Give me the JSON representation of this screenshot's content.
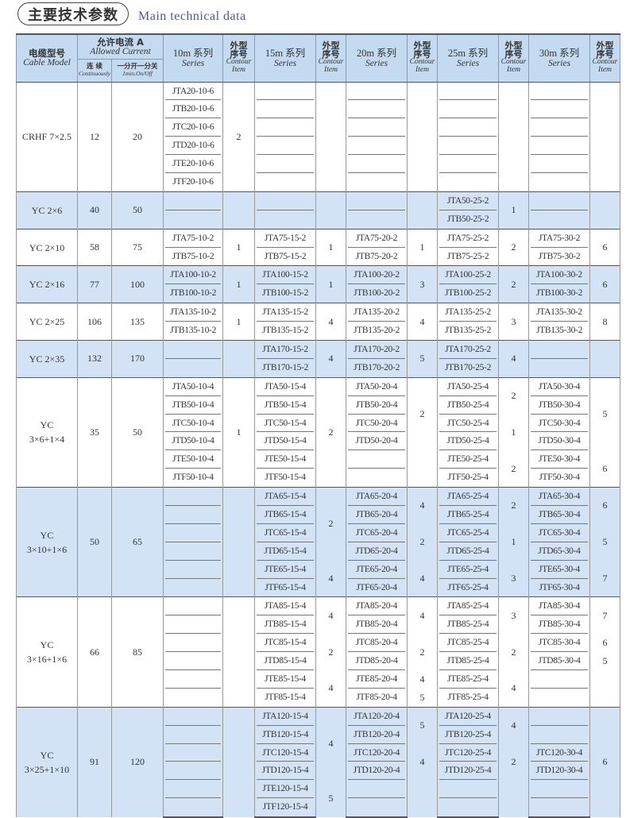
{
  "title": {
    "cn": "主要技术参数",
    "en": "Main technical data"
  },
  "header": {
    "cable_model_cn": "电缆型号",
    "cable_model_en": "Cable Model",
    "allowed_current_cn": "允许电流 A",
    "allowed_current_en": "Allowed Current",
    "continuous_cn": "连 续",
    "continuous_en": "Continuously",
    "onoff_cn": "一分开一分关",
    "onoff_en": "1min.On/Off",
    "series_en": "Series",
    "contour_cn_1": "外型",
    "contour_cn_2": "序号",
    "contour_en_1": "Contour",
    "contour_en_2": "Item",
    "series": [
      "10m 系列",
      "15m 系列",
      "20m 系列",
      "25m 系列",
      "30m 系列"
    ]
  },
  "colors": {
    "header_bg": "#c3daf0",
    "stripe_bg": "#d3e3f5"
  },
  "groups": [
    {
      "model": [
        "CRHF 7×2.5"
      ],
      "continuous": "12",
      "onoff": "20",
      "rows": 6,
      "blue": false,
      "series": [
        {
          "items": [
            "JTA20-10-6",
            "JTB20-10-6",
            "JTC20-10-6",
            "JTD20-10-6",
            "JTE20-10-6",
            "JTF20-10-6"
          ],
          "contour": [
            [
              6,
              "2"
            ]
          ]
        },
        {
          "items": [
            "",
            "",
            "",
            "",
            "",
            ""
          ],
          "contour": [
            [
              6,
              ""
            ]
          ]
        },
        {
          "items": [
            "",
            "",
            "",
            "",
            "",
            ""
          ],
          "contour": [
            [
              6,
              ""
            ]
          ]
        },
        {
          "items": [
            "",
            "",
            "",
            "",
            "",
            ""
          ],
          "contour": [
            [
              6,
              ""
            ]
          ]
        },
        {
          "items": [
            "",
            "",
            "",
            "",
            "",
            ""
          ],
          "contour": [
            [
              6,
              ""
            ]
          ]
        }
      ]
    },
    {
      "model": [
        "YC 2×6"
      ],
      "continuous": "40",
      "onoff": "50",
      "rows": 2,
      "blue": true,
      "series": [
        {
          "items": [
            "",
            ""
          ],
          "contour": [
            [
              2,
              ""
            ]
          ]
        },
        {
          "items": [
            "",
            ""
          ],
          "contour": [
            [
              2,
              ""
            ]
          ]
        },
        {
          "items": [
            "",
            ""
          ],
          "contour": [
            [
              2,
              ""
            ]
          ]
        },
        {
          "items": [
            "JTA50-25-2",
            "JTB50-25-2"
          ],
          "contour": [
            [
              2,
              "1"
            ]
          ]
        },
        {
          "items": [
            "",
            ""
          ],
          "contour": [
            [
              2,
              ""
            ]
          ]
        }
      ]
    },
    {
      "model": [
        "YC 2×10"
      ],
      "continuous": "58",
      "onoff": "75",
      "rows": 2,
      "blue": false,
      "series": [
        {
          "items": [
            "JTA75-10-2",
            "JTB75-10-2"
          ],
          "contour": [
            [
              2,
              "1"
            ]
          ]
        },
        {
          "items": [
            "JTA75-15-2",
            "JTB75-15-2"
          ],
          "contour": [
            [
              2,
              "1"
            ]
          ]
        },
        {
          "items": [
            "JTA75-20-2",
            "JTB75-20-2"
          ],
          "contour": [
            [
              2,
              "1"
            ]
          ]
        },
        {
          "items": [
            "JTA75-25-2",
            "JTB75-25-2"
          ],
          "contour": [
            [
              2,
              "2"
            ]
          ]
        },
        {
          "items": [
            "JTA75-30-2",
            "JTB75-30-2"
          ],
          "contour": [
            [
              2,
              "6"
            ]
          ]
        }
      ]
    },
    {
      "model": [
        "YC 2×16"
      ],
      "continuous": "77",
      "onoff": "100",
      "rows": 2,
      "blue": true,
      "series": [
        {
          "items": [
            "JTA100-10-2",
            "JTB100-10-2"
          ],
          "contour": [
            [
              2,
              "1"
            ]
          ]
        },
        {
          "items": [
            "JTA100-15-2",
            "JTB100-15-2"
          ],
          "contour": [
            [
              2,
              "1"
            ]
          ]
        },
        {
          "items": [
            "JTA100-20-2",
            "JTB100-20-2"
          ],
          "contour": [
            [
              2,
              "3"
            ]
          ]
        },
        {
          "items": [
            "JTA100-25-2",
            "JTB100-25-2"
          ],
          "contour": [
            [
              2,
              "2"
            ]
          ]
        },
        {
          "items": [
            "JTA100-30-2",
            "JTB100-30-2"
          ],
          "contour": [
            [
              2,
              "6"
            ]
          ]
        }
      ]
    },
    {
      "model": [
        "YC 2×25"
      ],
      "continuous": "106",
      "onoff": "135",
      "rows": 2,
      "blue": false,
      "series": [
        {
          "items": [
            "JTA135-10-2",
            "JTB135-10-2"
          ],
          "contour": [
            [
              2,
              "1"
            ]
          ]
        },
        {
          "items": [
            "JTA135-15-2",
            "JTB135-15-2"
          ],
          "contour": [
            [
              2,
              "4"
            ]
          ]
        },
        {
          "items": [
            "JTA135-20-2",
            "JTB135-20-2"
          ],
          "contour": [
            [
              2,
              "4"
            ]
          ]
        },
        {
          "items": [
            "JTA135-25-2",
            "JTB135-25-2"
          ],
          "contour": [
            [
              2,
              "3"
            ]
          ]
        },
        {
          "items": [
            "JTA135-30-2",
            "JTB135-30-2"
          ],
          "contour": [
            [
              2,
              "8"
            ]
          ]
        }
      ]
    },
    {
      "model": [
        "YC 2×35"
      ],
      "continuous": "132",
      "onoff": "170",
      "rows": 2,
      "blue": true,
      "series": [
        {
          "items": [
            "",
            ""
          ],
          "contour": [
            [
              2,
              ""
            ]
          ]
        },
        {
          "items": [
            "JTA170-15-2",
            "JTB170-15-2"
          ],
          "contour": [
            [
              2,
              "4"
            ]
          ]
        },
        {
          "items": [
            "JTA170-20-2",
            "JTB170-20-2"
          ],
          "contour": [
            [
              2,
              "5"
            ]
          ]
        },
        {
          "items": [
            "JTA170-25-2",
            "JTB170-25-2"
          ],
          "contour": [
            [
              2,
              "4"
            ]
          ]
        },
        {
          "items": [
            "",
            ""
          ],
          "contour": [
            [
              2,
              ""
            ]
          ]
        }
      ]
    },
    {
      "model": [
        "YC",
        "3×6+1×4"
      ],
      "continuous": "35",
      "onoff": "50",
      "rows": 6,
      "blue": false,
      "series": [
        {
          "items": [
            "JTA50-10-4",
            "JTB50-10-4",
            "JTC50-10-4",
            "JTD50-10-4",
            "JTE50-10-4",
            "JTF50-10-4"
          ],
          "contour": [
            [
              6,
              "1"
            ]
          ]
        },
        {
          "items": [
            "JTA50-15-4",
            "JTB50-15-4",
            "JTC50-15-4",
            "JTD50-15-4",
            "JTE50-15-4",
            "JTF50-15-4"
          ],
          "contour": [
            [
              6,
              "2"
            ]
          ]
        },
        {
          "items": [
            "JTA50-20-4",
            "JTB50-20-4",
            "JTC50-20-4",
            "JTD50-20-4",
            "",
            ""
          ],
          "contour": [
            [
              4,
              "2"
            ],
            [
              2,
              ""
            ]
          ]
        },
        {
          "items": [
            "JTA50-25-4",
            "JTB50-25-4",
            "JTC50-25-4",
            "JTD50-25-4",
            "JTE50-25-4",
            "JTF50-25-4"
          ],
          "contour": [
            [
              2,
              "2"
            ],
            [
              2,
              "1"
            ],
            [
              2,
              "2"
            ]
          ]
        },
        {
          "items": [
            "JTA50-30-4",
            "JTB50-30-4",
            "JTC50-30-4",
            "JTD50-30-4",
            "JTE50-30-4",
            "JTF50-30-4"
          ],
          "contour": [
            [
              4,
              "5"
            ],
            [
              2,
              "6"
            ]
          ]
        }
      ]
    },
    {
      "model": [
        "YC",
        "3×10+1×6"
      ],
      "continuous": "50",
      "onoff": "65",
      "rows": 6,
      "blue": true,
      "series": [
        {
          "items": [
            "",
            "",
            "",
            "",
            "",
            ""
          ],
          "contour": [
            [
              6,
              ""
            ]
          ]
        },
        {
          "items": [
            "JTA65-15-4",
            "JTB65-15-4",
            "JTC65-15-4",
            "JTD65-15-4",
            "JTE65-15-4",
            "JTF65-15-4"
          ],
          "contour": [
            [
              4,
              "2"
            ],
            [
              2,
              "4"
            ]
          ]
        },
        {
          "items": [
            "JTA65-20-4",
            "JTB65-20-4",
            "JTC65-20-4",
            "JTD65-20-4",
            "JTE65-20-4",
            "JTF65-20-4"
          ],
          "contour": [
            [
              2,
              "4"
            ],
            [
              2,
              "2"
            ],
            [
              2,
              "4"
            ]
          ]
        },
        {
          "items": [
            "JTA65-25-4",
            "JTB65-25-4",
            "JTC65-25-4",
            "JTD65-25-4",
            "JTE65-25-4",
            "JTF65-25-4"
          ],
          "contour": [
            [
              2,
              "2"
            ],
            [
              2,
              "1"
            ],
            [
              2,
              "3"
            ]
          ]
        },
        {
          "items": [
            "JTA65-30-4",
            "JTB65-30-4",
            "JTC65-30-4",
            "JTD65-30-4",
            "JTE65-30-4",
            "JTF65-30-4"
          ],
          "contour": [
            [
              2,
              "6"
            ],
            [
              2,
              "5"
            ],
            [
              2,
              "7"
            ]
          ]
        }
      ]
    },
    {
      "model": [
        "YC",
        "3×16+1×6"
      ],
      "continuous": "66",
      "onoff": "85",
      "rows": 6,
      "blue": false,
      "series": [
        {
          "items": [
            "",
            "",
            "",
            "",
            "",
            ""
          ],
          "contour": [
            [
              6,
              ""
            ]
          ]
        },
        {
          "items": [
            "JTA85-15-4",
            "JTB85-15-4",
            "JTC85-15-4",
            "JTD85-15-4",
            "JTE85-15-4",
            "JTF85-15-4"
          ],
          "contour": [
            [
              2,
              "4"
            ],
            [
              2,
              "2"
            ],
            [
              2,
              "4"
            ]
          ]
        },
        {
          "items": [
            "JTA85-20-4",
            "JTB85-20-4",
            "JTC85-20-4",
            "JTD85-20-4",
            "JTE85-20-4",
            "JTF85-20-4"
          ],
          "contour": [
            [
              2,
              "4"
            ],
            [
              2,
              "2"
            ],
            [
              1,
              "4"
            ],
            [
              1,
              "5"
            ]
          ]
        },
        {
          "items": [
            "JTA85-25-4",
            "JTB85-25-4",
            "JTC85-25-4",
            "JTD85-25-4",
            "JTE85-25-4",
            "JTF85-25-4"
          ],
          "contour": [
            [
              2,
              "3"
            ],
            [
              2,
              "2"
            ],
            [
              2,
              "4"
            ]
          ]
        },
        {
          "items": [
            "JTA85-30-4",
            "JTB85-30-4",
            "JTC85-30-4",
            "JTD85-30-4",
            "",
            ""
          ],
          "contour": [
            [
              2,
              "7"
            ],
            [
              1,
              "6"
            ],
            [
              1,
              "5"
            ],
            [
              2,
              ""
            ]
          ]
        }
      ]
    },
    {
      "model": [
        "YC",
        "3×25+1×10"
      ],
      "continuous": "91",
      "onoff": "120",
      "rows": 6,
      "blue": true,
      "series": [
        {
          "items": [
            "",
            "",
            "",
            "",
            "",
            ""
          ],
          "contour": [
            [
              6,
              ""
            ]
          ]
        },
        {
          "items": [
            "JTA120-15-4",
            "JTB120-15-4",
            "JTC120-15-4",
            "JTD120-15-4",
            "JTE120-15-4",
            "JTF120-15-4"
          ],
          "contour": [
            [
              4,
              "4"
            ],
            [
              2,
              "5"
            ]
          ]
        },
        {
          "items": [
            "JTA120-20-4",
            "JTB120-20-4",
            "JTC120-20-4",
            "JTD120-20-4",
            "",
            ""
          ],
          "contour": [
            [
              2,
              "5"
            ],
            [
              2,
              "4"
            ],
            [
              2,
              ""
            ]
          ]
        },
        {
          "items": [
            "JTA120-25-4",
            "JTB120-25-4",
            "JTC120-25-4",
            "JTD120-25-4",
            "",
            ""
          ],
          "contour": [
            [
              2,
              "4"
            ],
            [
              2,
              "2"
            ],
            [
              2,
              ""
            ]
          ]
        },
        {
          "items": [
            "",
            "",
            "JTC120-30-4",
            "JTD120-30-4",
            "",
            ""
          ],
          "contour": [
            [
              2,
              ""
            ],
            [
              2,
              "6"
            ],
            [
              2,
              ""
            ]
          ]
        }
      ]
    }
  ]
}
